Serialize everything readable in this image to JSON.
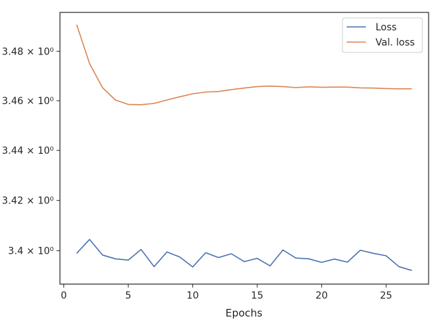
{
  "chart_data": {
    "type": "line",
    "title": "",
    "xlabel": "Epochs",
    "ylabel": "",
    "xlim": [
      -0.3,
      28.3
    ],
    "ylim": [
      3.3868,
      3.4958
    ],
    "y_scale": "log",
    "grid": false,
    "legend_position": "top-right",
    "x_ticks": [
      0,
      5,
      10,
      15,
      20,
      25
    ],
    "x_tick_labels": [
      "0",
      "5",
      "10",
      "15",
      "20",
      "25"
    ],
    "y_ticks": [
      3.4,
      3.42,
      3.44,
      3.46,
      3.48
    ],
    "y_tick_labels": [
      "3.4 × 10⁰",
      "3.42 × 10⁰",
      "3.44 × 10⁰",
      "3.46 × 10⁰",
      "3.48 × 10⁰"
    ],
    "x": [
      1,
      2,
      3,
      4,
      5,
      6,
      7,
      8,
      9,
      10,
      11,
      12,
      13,
      14,
      15,
      16,
      17,
      18,
      19,
      20,
      21,
      22,
      23,
      24,
      25,
      26,
      27
    ],
    "series": [
      {
        "name": "Loss",
        "color": "#4c72b0",
        "values": [
          3.399,
          3.4045,
          3.3983,
          3.3968,
          3.3963,
          3.4005,
          3.3937,
          3.3995,
          3.3975,
          3.3936,
          3.3992,
          3.3973,
          3.3988,
          3.3957,
          3.397,
          3.394,
          3.4003,
          3.3971,
          3.3968,
          3.3954,
          3.3967,
          3.3955,
          3.4002,
          3.399,
          3.398,
          3.3937,
          3.3922
        ]
      },
      {
        "name": "Val. loss",
        "color": "#dd8452",
        "values": [
          3.4908,
          3.475,
          3.4653,
          3.4603,
          3.4585,
          3.4584,
          3.4589,
          3.4603,
          3.4616,
          3.4628,
          3.4635,
          3.4637,
          3.4645,
          3.4651,
          3.4657,
          3.4659,
          3.4657,
          3.4653,
          3.4656,
          3.4654,
          3.4655,
          3.4655,
          3.4652,
          3.4651,
          3.4649,
          3.4648,
          3.4648
        ]
      }
    ]
  }
}
